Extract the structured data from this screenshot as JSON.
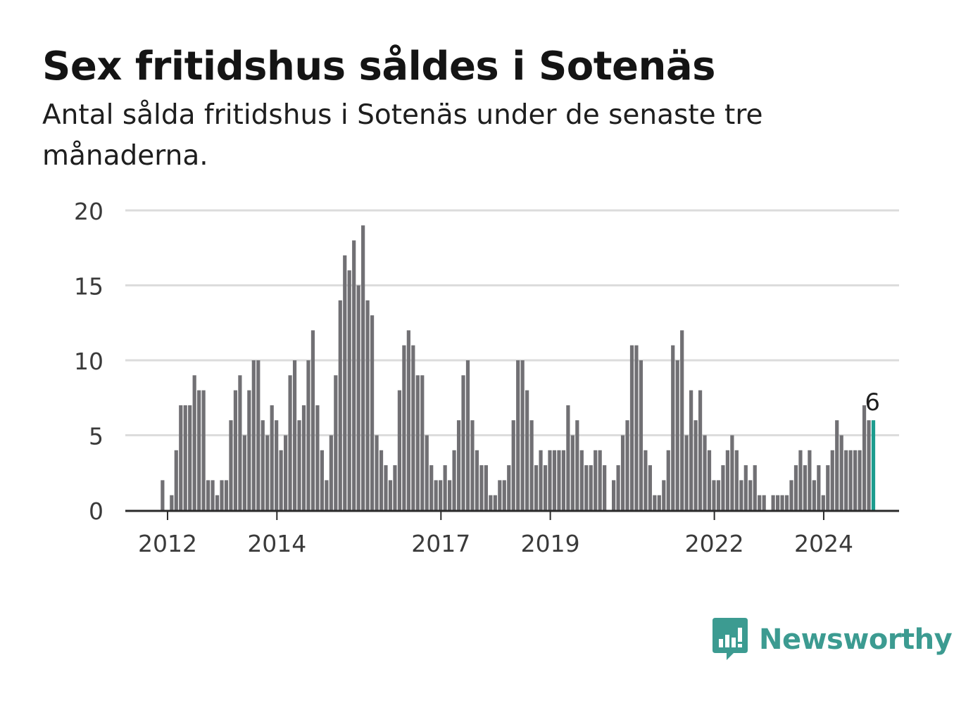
{
  "title": "Sex fritidshus såldes i Sotenäs",
  "subtitle": "Antal sålda fritidshus i Sotenäs under de senaste tre månaderna.",
  "brand": {
    "name": "Newsworthy",
    "icon": "newsworthy-logo-icon",
    "color": "#3c9b91"
  },
  "chart_data": {
    "type": "bar",
    "title": "Sex fritidshus såldes i Sotenäs",
    "subtitle": "Antal sålda fritidshus i Sotenäs under de senaste tre månaderna.",
    "x_start": "2011-11",
    "x_step": "month",
    "values": [
      0,
      2,
      0,
      1,
      4,
      7,
      7,
      7,
      9,
      8,
      8,
      2,
      2,
      1,
      2,
      2,
      6,
      8,
      9,
      5,
      8,
      10,
      10,
      6,
      5,
      7,
      6,
      4,
      5,
      9,
      10,
      6,
      7,
      10,
      12,
      7,
      4,
      2,
      5,
      9,
      14,
      17,
      16,
      18,
      15,
      19,
      14,
      13,
      5,
      4,
      3,
      2,
      3,
      8,
      11,
      12,
      11,
      9,
      9,
      5,
      3,
      2,
      2,
      3,
      2,
      4,
      6,
      9,
      10,
      6,
      4,
      3,
      3,
      1,
      1,
      2,
      2,
      3,
      6,
      10,
      10,
      8,
      6,
      3,
      4,
      3,
      4,
      4,
      4,
      4,
      7,
      5,
      6,
      4,
      3,
      3,
      4,
      4,
      3,
      0,
      2,
      3,
      5,
      6,
      11,
      11,
      10,
      4,
      3,
      1,
      1,
      2,
      4,
      11,
      10,
      12,
      5,
      8,
      6,
      8,
      5,
      4,
      2,
      2,
      3,
      4,
      5,
      4,
      2,
      3,
      2,
      3,
      1,
      1,
      0,
      1,
      1,
      1,
      1,
      2,
      3,
      4,
      3,
      4,
      2,
      3,
      1,
      3,
      4,
      6,
      5,
      4,
      4,
      4,
      4,
      7,
      6,
      6
    ],
    "highlight_last": true,
    "highlight_label": "6",
    "x_ticks": [
      "2012",
      "2014",
      "2017",
      "2019",
      "2022",
      "2024"
    ],
    "x_tick_indices": [
      2,
      26,
      62,
      86,
      122,
      146
    ],
    "y_ticks": [
      0,
      5,
      10,
      15,
      20
    ],
    "ylim": [
      0,
      20
    ],
    "bar_color": "#717074",
    "highlight_color": "#1c9c8e",
    "grid": true
  }
}
